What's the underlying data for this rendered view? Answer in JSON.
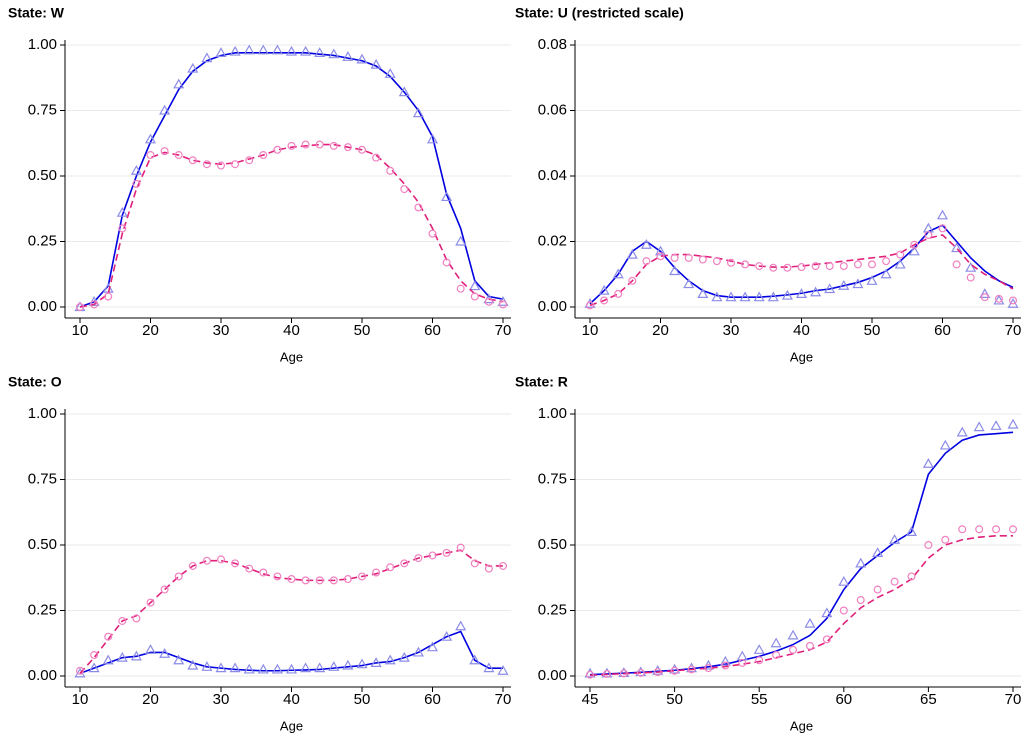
{
  "chart_data": [
    {
      "type": "line",
      "title": "State: W",
      "xlabel": "Age",
      "grid": true,
      "xlim": [
        10,
        70
      ],
      "xticks": [
        10,
        20,
        30,
        40,
        50,
        60,
        70
      ],
      "ylim": [
        0,
        1
      ],
      "yticks": [
        {
          "value": 0,
          "label": "0.00"
        },
        {
          "value": 0.25,
          "label": "0.25"
        },
        {
          "value": 0.5,
          "label": "0.50"
        },
        {
          "value": 0.75,
          "label": "0.75"
        },
        {
          "value": 1,
          "label": "1.00"
        }
      ],
      "x": [
        10,
        12,
        14,
        16,
        18,
        20,
        22,
        24,
        26,
        28,
        30,
        32,
        34,
        36,
        38,
        40,
        42,
        44,
        46,
        48,
        50,
        52,
        54,
        56,
        58,
        60,
        62,
        64,
        66,
        68,
        70
      ],
      "series": [
        {
          "color": "#0000e0",
          "mark": "line",
          "dash": false,
          "values": [
            0,
            0.02,
            0.08,
            0.35,
            0.5,
            0.63,
            0.73,
            0.83,
            0.9,
            0.94,
            0.96,
            0.97,
            0.97,
            0.97,
            0.97,
            0.97,
            0.97,
            0.965,
            0.96,
            0.95,
            0.94,
            0.92,
            0.88,
            0.82,
            0.75,
            0.65,
            0.43,
            0.3,
            0.1,
            0.04,
            0.03
          ]
        },
        {
          "color": "#8c8ce8",
          "mark": "triangle",
          "values": [
            0,
            0.02,
            0.07,
            0.36,
            0.52,
            0.64,
            0.75,
            0.85,
            0.91,
            0.95,
            0.97,
            0.975,
            0.98,
            0.98,
            0.98,
            0.975,
            0.975,
            0.97,
            0.965,
            0.955,
            0.945,
            0.925,
            0.89,
            0.82,
            0.74,
            0.64,
            0.42,
            0.25,
            0.08,
            0.03,
            0.02
          ]
        },
        {
          "color": "#e0207a",
          "mark": "line",
          "dash": true,
          "values": [
            0,
            0.01,
            0.05,
            0.28,
            0.45,
            0.57,
            0.59,
            0.58,
            0.56,
            0.55,
            0.545,
            0.55,
            0.565,
            0.58,
            0.6,
            0.61,
            0.615,
            0.62,
            0.62,
            0.61,
            0.6,
            0.58,
            0.53,
            0.47,
            0.4,
            0.3,
            0.18,
            0.1,
            0.05,
            0.03,
            0.02
          ]
        },
        {
          "color": "#f080c0",
          "mark": "circle",
          "values": [
            0,
            0.01,
            0.04,
            0.3,
            0.47,
            0.58,
            0.595,
            0.58,
            0.56,
            0.545,
            0.54,
            0.545,
            0.56,
            0.58,
            0.6,
            0.615,
            0.62,
            0.62,
            0.615,
            0.61,
            0.6,
            0.57,
            0.52,
            0.45,
            0.38,
            0.28,
            0.17,
            0.07,
            0.04,
            0.02,
            0.01
          ]
        }
      ]
    },
    {
      "type": "line",
      "title": "State: U (restricted scale)",
      "xlabel": "Age",
      "grid": true,
      "xlim": [
        10,
        70
      ],
      "xticks": [
        10,
        20,
        30,
        40,
        50,
        60,
        70
      ],
      "ylim": [
        0,
        0.08
      ],
      "yticks": [
        {
          "value": 0,
          "label": "0.00"
        },
        {
          "value": 0.02,
          "label": "0.02"
        },
        {
          "value": 0.04,
          "label": "0.04"
        },
        {
          "value": 0.06,
          "label": "0.06"
        },
        {
          "value": 0.08,
          "label": "0.08"
        }
      ],
      "x": [
        10,
        12,
        14,
        16,
        18,
        20,
        22,
        24,
        26,
        28,
        30,
        32,
        34,
        36,
        38,
        40,
        42,
        44,
        46,
        48,
        50,
        52,
        54,
        56,
        58,
        60,
        62,
        64,
        66,
        68,
        70
      ],
      "series": [
        {
          "color": "#0000e0",
          "mark": "line",
          "dash": false,
          "values": [
            0.001,
            0.005,
            0.01,
            0.017,
            0.02,
            0.017,
            0.012,
            0.008,
            0.005,
            0.0035,
            0.003,
            0.003,
            0.003,
            0.0033,
            0.0037,
            0.0042,
            0.005,
            0.0055,
            0.0065,
            0.0075,
            0.009,
            0.011,
            0.014,
            0.018,
            0.023,
            0.025,
            0.02,
            0.015,
            0.011,
            0.008,
            0.006
          ]
        },
        {
          "color": "#8c8ce8",
          "mark": "triangle",
          "values": [
            0.001,
            0.005,
            0.01,
            0.016,
            0.019,
            0.017,
            0.011,
            0.007,
            0.004,
            0.003,
            0.003,
            0.003,
            0.003,
            0.003,
            0.0035,
            0.004,
            0.0045,
            0.0055,
            0.0065,
            0.007,
            0.008,
            0.01,
            0.013,
            0.017,
            0.024,
            0.028,
            0.018,
            0.012,
            0.004,
            0.002,
            0.001
          ]
        },
        {
          "color": "#e0207a",
          "mark": "line",
          "dash": true,
          "values": [
            0.0005,
            0.002,
            0.004,
            0.008,
            0.013,
            0.0155,
            0.016,
            0.016,
            0.0155,
            0.015,
            0.014,
            0.013,
            0.0125,
            0.0122,
            0.0122,
            0.0125,
            0.013,
            0.0135,
            0.014,
            0.0145,
            0.015,
            0.0155,
            0.0165,
            0.019,
            0.021,
            0.022,
            0.018,
            0.013,
            0.01,
            0.008,
            0.0055
          ]
        },
        {
          "color": "#f080c0",
          "mark": "circle",
          "values": [
            0.0005,
            0.002,
            0.004,
            0.008,
            0.014,
            0.0155,
            0.015,
            0.015,
            0.0145,
            0.014,
            0.0135,
            0.013,
            0.0125,
            0.012,
            0.012,
            0.0122,
            0.0125,
            0.0125,
            0.0125,
            0.013,
            0.013,
            0.014,
            0.016,
            0.019,
            0.022,
            0.024,
            0.013,
            0.009,
            0.003,
            0.0025,
            0.002
          ]
        }
      ]
    },
    {
      "type": "line",
      "title": "State: O",
      "xlabel": "Age",
      "grid": true,
      "xlim": [
        10,
        70
      ],
      "xticks": [
        10,
        20,
        30,
        40,
        50,
        60,
        70
      ],
      "ylim": [
        0,
        1
      ],
      "yticks": [
        {
          "value": 0,
          "label": "0.00"
        },
        {
          "value": 0.25,
          "label": "0.25"
        },
        {
          "value": 0.5,
          "label": "0.50"
        },
        {
          "value": 0.75,
          "label": "0.75"
        },
        {
          "value": 1,
          "label": "1.00"
        }
      ],
      "x": [
        10,
        12,
        14,
        16,
        18,
        20,
        22,
        24,
        26,
        28,
        30,
        32,
        34,
        36,
        38,
        40,
        42,
        44,
        46,
        48,
        50,
        52,
        54,
        56,
        58,
        60,
        62,
        64,
        66,
        68,
        70
      ],
      "series": [
        {
          "color": "#0000e0",
          "mark": "line",
          "dash": false,
          "values": [
            0.01,
            0.03,
            0.05,
            0.07,
            0.075,
            0.09,
            0.09,
            0.07,
            0.05,
            0.035,
            0.03,
            0.025,
            0.022,
            0.02,
            0.02,
            0.022,
            0.023,
            0.025,
            0.03,
            0.035,
            0.04,
            0.05,
            0.055,
            0.07,
            0.09,
            0.12,
            0.15,
            0.17,
            0.06,
            0.03,
            0.03
          ]
        },
        {
          "color": "#8c8ce8",
          "mark": "triangle",
          "values": [
            0.01,
            0.03,
            0.06,
            0.07,
            0.075,
            0.1,
            0.085,
            0.06,
            0.04,
            0.035,
            0.03,
            0.03,
            0.025,
            0.025,
            0.025,
            0.025,
            0.03,
            0.03,
            0.035,
            0.04,
            0.045,
            0.05,
            0.06,
            0.07,
            0.09,
            0.11,
            0.15,
            0.19,
            0.06,
            0.03,
            0.02
          ]
        },
        {
          "color": "#e0207a",
          "mark": "line",
          "dash": true,
          "values": [
            0.01,
            0.07,
            0.14,
            0.21,
            0.23,
            0.28,
            0.33,
            0.38,
            0.42,
            0.44,
            0.44,
            0.43,
            0.41,
            0.39,
            0.375,
            0.37,
            0.365,
            0.365,
            0.365,
            0.37,
            0.38,
            0.39,
            0.41,
            0.43,
            0.45,
            0.46,
            0.47,
            0.48,
            0.44,
            0.42,
            0.42
          ]
        },
        {
          "color": "#f080c0",
          "mark": "circle",
          "values": [
            0.02,
            0.08,
            0.15,
            0.21,
            0.22,
            0.28,
            0.33,
            0.38,
            0.42,
            0.44,
            0.445,
            0.43,
            0.41,
            0.395,
            0.38,
            0.37,
            0.365,
            0.365,
            0.365,
            0.37,
            0.38,
            0.395,
            0.415,
            0.43,
            0.45,
            0.46,
            0.47,
            0.49,
            0.43,
            0.41,
            0.42
          ]
        }
      ]
    },
    {
      "type": "line",
      "title": "State: R",
      "xlabel": "Age",
      "grid": true,
      "xlim": [
        45,
        70
      ],
      "xticks": [
        45,
        50,
        55,
        60,
        65,
        70
      ],
      "ylim": [
        0,
        1
      ],
      "yticks": [
        {
          "value": 0,
          "label": "0.00"
        },
        {
          "value": 0.25,
          "label": "0.25"
        },
        {
          "value": 0.5,
          "label": "0.50"
        },
        {
          "value": 0.75,
          "label": "0.75"
        },
        {
          "value": 1,
          "label": "1.00"
        }
      ],
      "x": [
        45,
        46,
        47,
        48,
        49,
        50,
        51,
        52,
        53,
        54,
        55,
        56,
        57,
        58,
        59,
        60,
        61,
        62,
        63,
        64,
        65,
        66,
        67,
        68,
        69,
        70
      ],
      "series": [
        {
          "color": "#0000e0",
          "mark": "line",
          "dash": false,
          "values": [
            0.005,
            0.008,
            0.011,
            0.014,
            0.018,
            0.022,
            0.028,
            0.035,
            0.045,
            0.06,
            0.075,
            0.095,
            0.12,
            0.155,
            0.22,
            0.33,
            0.41,
            0.46,
            0.51,
            0.55,
            0.77,
            0.85,
            0.9,
            0.92,
            0.925,
            0.93
          ]
        },
        {
          "color": "#8c8ce8",
          "mark": "triangle",
          "values": [
            0.01,
            0.01,
            0.012,
            0.015,
            0.02,
            0.025,
            0.03,
            0.04,
            0.055,
            0.075,
            0.1,
            0.125,
            0.155,
            0.2,
            0.24,
            0.36,
            0.43,
            0.47,
            0.52,
            0.55,
            0.81,
            0.88,
            0.93,
            0.95,
            0.955,
            0.96
          ]
        },
        {
          "color": "#e0207a",
          "mark": "line",
          "dash": true,
          "values": [
            0.003,
            0.006,
            0.009,
            0.012,
            0.015,
            0.02,
            0.025,
            0.03,
            0.036,
            0.045,
            0.055,
            0.07,
            0.085,
            0.1,
            0.13,
            0.2,
            0.26,
            0.3,
            0.33,
            0.37,
            0.45,
            0.5,
            0.52,
            0.53,
            0.535,
            0.535
          ]
        },
        {
          "color": "#f080c0",
          "mark": "circle",
          "values": [
            0.005,
            0.008,
            0.01,
            0.012,
            0.015,
            0.02,
            0.025,
            0.03,
            0.04,
            0.05,
            0.06,
            0.08,
            0.1,
            0.115,
            0.14,
            0.25,
            0.29,
            0.33,
            0.36,
            0.38,
            0.5,
            0.52,
            0.56,
            0.56,
            0.56,
            0.56
          ]
        }
      ]
    }
  ]
}
